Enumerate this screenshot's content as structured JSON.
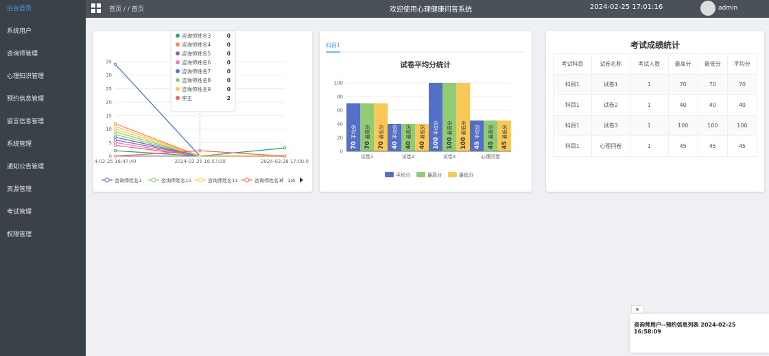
{
  "sidebar": {
    "items": [
      "后台首页",
      "系统用户",
      "咨询师管理",
      "心理知识管理",
      "预约信息管理",
      "留言信息管理",
      "系统管理",
      "通知公告管理",
      "资源管理",
      "考试管理",
      "权限管理"
    ]
  },
  "topbar": {
    "breadcrumb": [
      "首页",
      "首页"
    ],
    "separator": "/",
    "title": "欢迎使用心理健康问答系统",
    "datetime": "2024-02-25 17:01:16",
    "user": "admin"
  },
  "chart_data": [
    {
      "type": "line",
      "categories": [
        "4-02-25 16:47:40",
        "2024-02-25 16:57:00",
        "2024-02-28 17:00:0"
      ],
      "ylim": [
        0,
        35
      ],
      "yticks": [
        0,
        5,
        10,
        15,
        20,
        25,
        30,
        35
      ],
      "grid": true,
      "series": [
        {
          "name": "咨询师姓名1",
          "color": "#5470c6",
          "values": [
            34,
            0,
            0
          ]
        },
        {
          "name": "咨询师姓名10",
          "color": "#91cc75",
          "values": [
            8,
            0,
            0
          ]
        },
        {
          "name": "咨询师姓名11",
          "color": "#fac858",
          "values": [
            11,
            0,
            0
          ]
        },
        {
          "name": "咨询师姓名1",
          "color": "#ee6666",
          "values": [
            4,
            0,
            0
          ]
        },
        {
          "name": "咨询师姓名3",
          "color": "#3ba272",
          "values": [
            2,
            0,
            3
          ]
        },
        {
          "name": "咨询师姓名4",
          "color": "#fc8452",
          "values": [
            12,
            0,
            0
          ]
        },
        {
          "name": "咨询师姓名5",
          "color": "#9a60b4",
          "values": [
            6,
            0,
            0
          ]
        },
        {
          "name": "咨询师姓名6",
          "color": "#ea7ccc",
          "values": [
            5,
            0,
            0
          ]
        },
        {
          "name": "咨询师姓名7",
          "color": "#5470c6",
          "values": [
            7,
            0,
            0
          ]
        },
        {
          "name": "咨询师姓名8",
          "color": "#91cc75",
          "values": [
            9,
            0,
            0
          ]
        },
        {
          "name": "咨询师姓名9",
          "color": "#fac858",
          "values": [
            10,
            0,
            0
          ]
        },
        {
          "name": "李王",
          "color": "#ee6666",
          "values": [
            0,
            2,
            0
          ]
        }
      ],
      "legend_count": 4,
      "legend_page": "1/4",
      "tooltip_index": 1
    },
    {
      "type": "bar",
      "tab": "科目1",
      "title": "试卷平均分统计",
      "categories": [
        "试卷1",
        "试卷2",
        "试卷3",
        "心理问卷"
      ],
      "ylim": [
        0,
        100
      ],
      "yticks": [
        0,
        20,
        40,
        60,
        80,
        100
      ],
      "grid": true,
      "series": [
        {
          "name": "平均分",
          "color": "#5470c6",
          "values": [
            70,
            40,
            100,
            45
          ]
        },
        {
          "name": "最高分",
          "color": "#91cc75",
          "values": [
            70,
            40,
            100,
            45
          ]
        },
        {
          "name": "最低分",
          "color": "#fac858",
          "values": [
            70,
            40,
            100,
            45
          ]
        }
      ]
    }
  ],
  "table": {
    "title": "考试成绩统计",
    "headers": [
      "考试科目",
      "试卷名称",
      "考试人数",
      "最高分",
      "最低分",
      "平均分"
    ],
    "rows": [
      [
        "科目1",
        "试卷1",
        "1",
        "70",
        "70",
        "70"
      ],
      [
        "科目1",
        "试卷2",
        "1",
        "40",
        "40",
        "40"
      ],
      [
        "科目1",
        "试卷3",
        "1",
        "100",
        "100",
        "100"
      ],
      [
        "科目1",
        "心理问卷",
        "1",
        "45",
        "45",
        "45"
      ]
    ]
  },
  "notification": {
    "close": "x",
    "text": "咨询师用户--预约信息列表 2024-02-25 16:58:09"
  }
}
